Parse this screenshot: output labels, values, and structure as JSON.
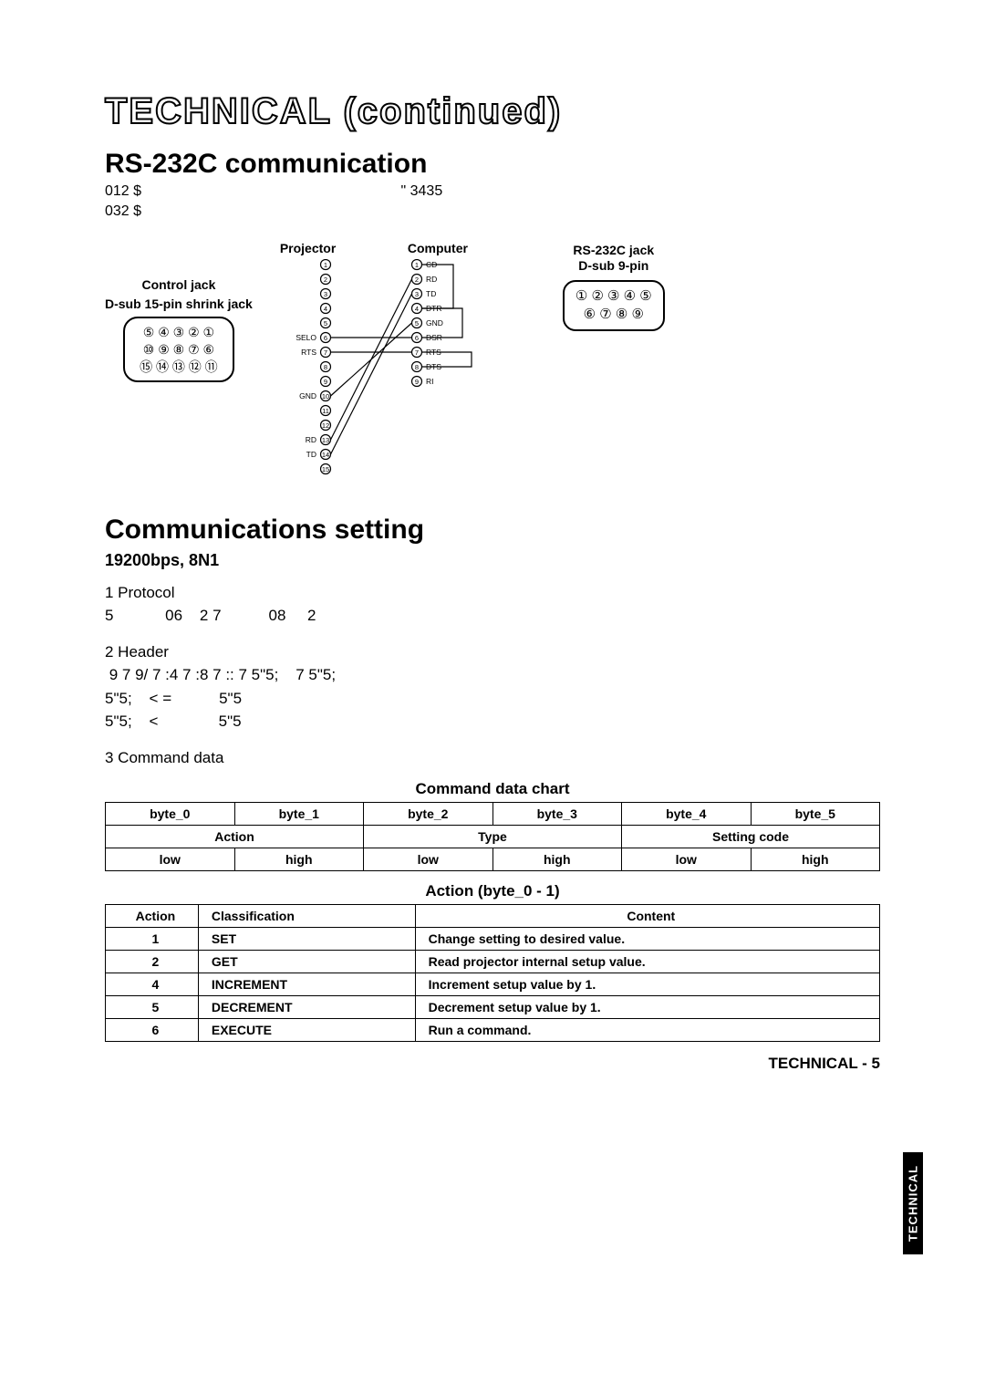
{
  "page_title": "TECHNICAL (continued)",
  "section1": {
    "heading": "RS-232C communication",
    "line1_left": "012 $",
    "line1_right": "\" 3435",
    "line2": "032 $"
  },
  "diagram": {
    "control_jack": {
      "l1": "Control jack",
      "l2": "D-sub 15-pin shrink jack"
    },
    "projector_label": "Projector",
    "computer_label": "Computer",
    "rs232c_label": "RS-232C jack",
    "dsub9_label": "D-sub 9-pin",
    "projector_pins": [
      "",
      "",
      "",
      "",
      "",
      "SELO",
      "RTS",
      "",
      "",
      "GND",
      "",
      "",
      "RD",
      "TD",
      ""
    ],
    "computer_pins": [
      "CD",
      "RD",
      "TD",
      "DTR",
      "GND",
      "DSR",
      "RTS",
      "DTS",
      "RI"
    ],
    "wires": [
      [
        13,
        2
      ],
      [
        14,
        3
      ],
      [
        6,
        6
      ],
      [
        7,
        7
      ],
      [
        10,
        5
      ]
    ],
    "jumpers_right": [
      [
        1,
        4
      ],
      [
        4,
        6
      ],
      [
        7,
        8
      ]
    ]
  },
  "section2": {
    "heading": "Communications setting",
    "sub": "19200bps,  8N1",
    "proto_h": "1 Protocol",
    "proto_l": "5            06    2 7           08     2",
    "head_h": "2 Header",
    "head_l1": " 9 7 9/ 7 :4 7 :8 7 :: 7 5\"5;    7 5\"5;",
    "head_l2": "5\"5;    < =           5\"5",
    "head_l3": "5\"5;    <              5\"5",
    "cmd_h": "3 Command data"
  },
  "cmd_chart": {
    "caption": "Command data chart",
    "r1": [
      "byte_0",
      "byte_1",
      "byte_2",
      "byte_3",
      "byte_4",
      "byte_5"
    ],
    "r2": [
      "Action",
      "Type",
      "Setting code"
    ],
    "r3": [
      "low",
      "high",
      "low",
      "high",
      "low",
      "high"
    ]
  },
  "action_table": {
    "caption": "Action (byte_0 - 1)",
    "head": [
      "Action",
      "Classification",
      "Content"
    ],
    "rows": [
      [
        "1",
        "SET",
        "Change setting to desired value."
      ],
      [
        "2",
        "GET",
        "Read projector internal setup value."
      ],
      [
        "4",
        "INCREMENT",
        "Increment setup value by 1."
      ],
      [
        "5",
        "DECREMENT",
        "Decrement setup value by 1."
      ],
      [
        "6",
        "EXECUTE",
        "Run a command."
      ]
    ]
  },
  "side_tab": "TECHNICAL",
  "footer": "TECHNICAL - 5"
}
